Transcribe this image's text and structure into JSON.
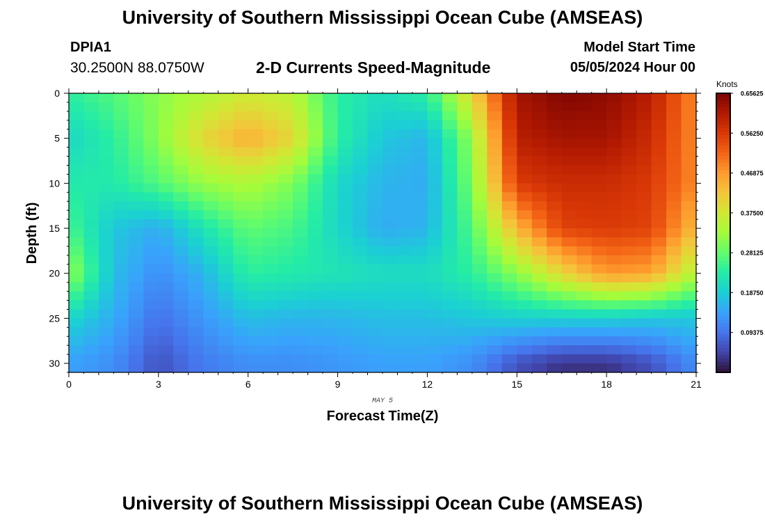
{
  "header": {
    "title": "University of Southern Mississippi Ocean Cube (AMSEAS)",
    "station_id": "DPIA1",
    "coords": "30.2500N  88.0750W",
    "subtitle": "2-D Currents Speed-Magnitude",
    "model_start_label": "Model Start Time",
    "model_start_value": "05/05/2024 Hour 00"
  },
  "footer": {
    "title": "University of Southern Mississippi Ocean Cube (AMSEAS)"
  },
  "chart_data": {
    "type": "heatmap",
    "title": "2-D Currents Speed-Magnitude",
    "xlabel": "Forecast Time(Z)",
    "ylabel": "Depth (ft)",
    "date_label": "MAY 5",
    "xlim": [
      0,
      21
    ],
    "ylim": [
      31,
      0
    ],
    "xticks": [
      0,
      3,
      6,
      9,
      12,
      15,
      18,
      21
    ],
    "yticks": [
      0,
      5,
      10,
      15,
      20,
      25,
      30
    ],
    "x_centers": [
      0,
      1.5,
      3,
      4.5,
      6,
      7.5,
      9,
      10.5,
      12,
      13.5,
      15,
      16.5,
      18,
      19.5,
      21
    ],
    "y_centers": [
      0,
      5,
      10,
      15,
      20,
      25,
      30
    ],
    "values": [
      [
        0.24,
        0.27,
        0.31,
        0.34,
        0.37,
        0.35,
        0.24,
        0.21,
        0.24,
        0.4,
        0.62,
        0.65,
        0.64,
        0.6,
        0.48
      ],
      [
        0.2,
        0.24,
        0.31,
        0.4,
        0.45,
        0.4,
        0.24,
        0.18,
        0.16,
        0.32,
        0.6,
        0.62,
        0.62,
        0.58,
        0.48
      ],
      [
        0.23,
        0.23,
        0.27,
        0.32,
        0.34,
        0.3,
        0.2,
        0.16,
        0.15,
        0.3,
        0.56,
        0.58,
        0.58,
        0.56,
        0.48
      ],
      [
        0.26,
        0.18,
        0.15,
        0.22,
        0.28,
        0.26,
        0.2,
        0.15,
        0.16,
        0.27,
        0.44,
        0.55,
        0.56,
        0.55,
        0.43
      ],
      [
        0.32,
        0.17,
        0.12,
        0.16,
        0.24,
        0.23,
        0.22,
        0.21,
        0.21,
        0.24,
        0.31,
        0.4,
        0.47,
        0.46,
        0.34
      ],
      [
        0.2,
        0.15,
        0.09,
        0.13,
        0.17,
        0.16,
        0.16,
        0.17,
        0.17,
        0.18,
        0.19,
        0.19,
        0.19,
        0.18,
        0.18
      ],
      [
        0.14,
        0.12,
        0.06,
        0.1,
        0.12,
        0.12,
        0.13,
        0.14,
        0.14,
        0.12,
        0.06,
        0.03,
        0.03,
        0.06,
        0.12
      ]
    ],
    "colorbar": {
      "label": "Knots",
      "min": 0,
      "max": 0.65625,
      "ticks": [
        0.09375,
        0.1875,
        0.28125,
        0.375,
        0.46875,
        0.5625,
        0.65625
      ],
      "tick_labels": [
        "0.09375",
        "0.18750",
        "0.28125",
        "0.37500",
        "0.46875",
        "0.56250",
        "0.65625"
      ]
    },
    "colormap": [
      "#30123b",
      "#4145ab",
      "#4675ed",
      "#39a2fc",
      "#1bcfd4",
      "#24eca6",
      "#61fc6c",
      "#a4fc3b",
      "#d1e834",
      "#f3c63a",
      "#fe9b2d",
      "#f36315",
      "#d93806",
      "#b11901",
      "#7a0402"
    ]
  }
}
